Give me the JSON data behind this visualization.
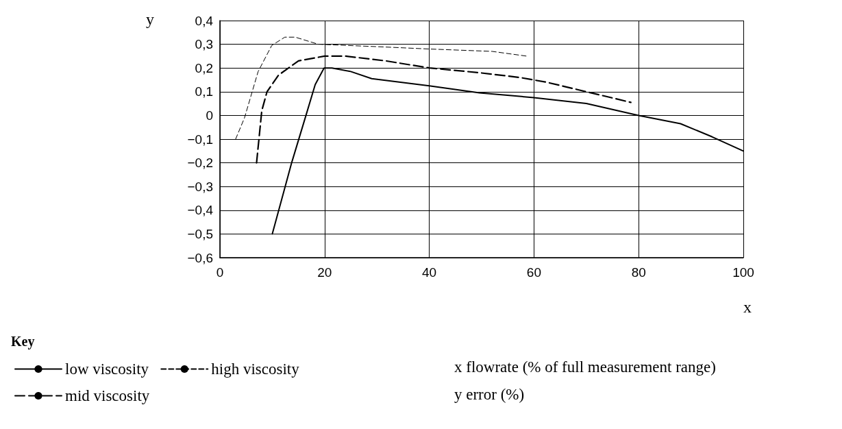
{
  "chart_data": {
    "type": "line",
    "xlabel": "x",
    "ylabel": "y",
    "legend_title": "Key",
    "xlim": [
      0,
      100
    ],
    "xticks": [
      0,
      20,
      40,
      60,
      80,
      100
    ],
    "ylim": [
      -0.6,
      0.4
    ],
    "yticks": [
      {
        "value": -0.6,
        "label": "−0,6"
      },
      {
        "value": -0.5,
        "label": "−0,5"
      },
      {
        "value": -0.4,
        "label": "−0,4"
      },
      {
        "value": -0.3,
        "label": "−0,3"
      },
      {
        "value": -0.2,
        "label": "−0,2"
      },
      {
        "value": -0.1,
        "label": "−0,1"
      },
      {
        "value": 0,
        "label": "0"
      },
      {
        "value": 0.1,
        "label": "0,1"
      },
      {
        "value": 0.2,
        "label": "0,2"
      },
      {
        "value": 0.3,
        "label": "0,3"
      },
      {
        "value": 0.4,
        "label": "0,4"
      }
    ],
    "grid": true,
    "legend": "bottom left",
    "marker": "none",
    "series": [
      {
        "name": "low viscosity",
        "color": "#000000",
        "line_style": "solid",
        "x": [
          10,
          13.7,
          16.3,
          18.2,
          19.9,
          21.4,
          25,
          29,
          40,
          49.6,
          60,
          70,
          80,
          88,
          94,
          100
        ],
        "values": [
          -0.5,
          -0.2,
          -0.01,
          0.13,
          0.2,
          0.2,
          0.185,
          0.155,
          0.125,
          0.095,
          0.075,
          0.05,
          0,
          -0.035,
          -0.09,
          -0.15
        ]
      },
      {
        "name": "mid viscosity",
        "color": "#000000",
        "line_style": "dashed",
        "x": [
          7,
          8,
          9,
          11.2,
          15,
          20,
          24,
          31.7,
          40,
          49.6,
          57.3,
          62.4,
          70,
          78.5
        ],
        "values": [
          -0.2,
          0.02,
          0.1,
          0.17,
          0.23,
          0.25,
          0.25,
          0.23,
          0.2,
          0.18,
          0.16,
          0.14,
          0.1,
          0.055
        ]
      },
      {
        "name": "high viscosity",
        "color": "#000000",
        "line_style": "dashed",
        "x": [
          3,
          4.7,
          7.3,
          9.9,
          12.4,
          14.4,
          18.8,
          30,
          40,
          52,
          58.6
        ],
        "values": [
          -0.1,
          -0.01,
          0.185,
          0.295,
          0.33,
          0.33,
          0.3,
          0.29,
          0.28,
          0.27,
          0.25
        ]
      }
    ],
    "annotations": [
      "x flowrate (% of full measurement range)",
      "y error (%)"
    ]
  }
}
